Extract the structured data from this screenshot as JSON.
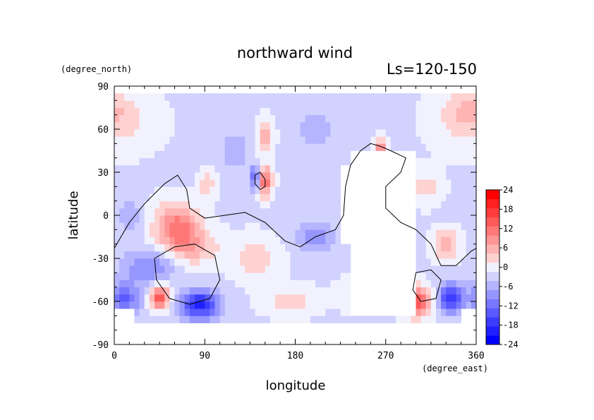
{
  "chart_data": {
    "type": "heatmap",
    "title": "northward wind",
    "subtitle": "Ls=120-150",
    "xlabel": "longitude",
    "ylabel": "latitude",
    "x_unit": "(degree_east)",
    "y_unit": "(degree_north)",
    "xlim": [
      0,
      360
    ],
    "ylim": [
      -90,
      90
    ],
    "x_ticks": [
      "0",
      "90",
      "180",
      "270",
      "360"
    ],
    "y_ticks": [
      "90",
      "60",
      "30",
      "0",
      "-30",
      "-60",
      "-90"
    ],
    "x_tick_values": [
      0,
      90,
      180,
      270,
      360
    ],
    "y_tick_values": [
      90,
      60,
      30,
      0,
      -30,
      -60,
      -90
    ],
    "colorbar": {
      "ticks": [
        "24",
        "18",
        "12",
        "6",
        "0",
        "-6",
        "-12",
        "-18",
        "-24"
      ],
      "levels": [
        -24,
        -21,
        -18,
        -15,
        -12,
        -9,
        -6,
        -3,
        0,
        3,
        6,
        9,
        12,
        15,
        18,
        21,
        24
      ],
      "colors": [
        "#0000ff",
        "#2020ff",
        "#3c3cff",
        "#5a5aff",
        "#7878ff",
        "#9696ff",
        "#b4b4ff",
        "#d2d2ff",
        "#f2f2ff",
        "#ffd2d2",
        "#ffb4b4",
        "#ff9696",
        "#ff7878",
        "#ff5a5a",
        "#ff3c3c",
        "#ff2020",
        "#ff0000"
      ],
      "range": [
        -24,
        24
      ]
    },
    "data_lat_range": [
      -75,
      85
    ],
    "background": -2,
    "field_features": [
      {
        "lon": 62,
        "lat": -8,
        "value": 14,
        "lon_width": 22,
        "lat_width": 16
      },
      {
        "lon": 80,
        "lat": -22,
        "value": 7,
        "lon_width": 25,
        "lat_width": 12
      },
      {
        "lon": 150,
        "lat": 24,
        "value": 16,
        "lon_width": 7,
        "lat_width": 10
      },
      {
        "lon": 140,
        "lat": 26,
        "value": -14,
        "lon_width": 5,
        "lat_width": 8
      },
      {
        "lon": 150,
        "lat": 55,
        "value": 8,
        "lon_width": 8,
        "lat_width": 12
      },
      {
        "lon": 92,
        "lat": 22,
        "value": 6,
        "lon_width": 8,
        "lat_width": 10
      },
      {
        "lon": 45,
        "lat": -57,
        "value": 18,
        "lon_width": 10,
        "lat_width": 8
      },
      {
        "lon": 85,
        "lat": -62,
        "value": -20,
        "lon_width": 18,
        "lat_width": 10
      },
      {
        "lon": 10,
        "lat": -58,
        "value": -12,
        "lon_width": 16,
        "lat_width": 12
      },
      {
        "lon": 35,
        "lat": -35,
        "value": -9,
        "lon_width": 25,
        "lat_width": 12
      },
      {
        "lon": 300,
        "lat": -60,
        "value": 20,
        "lon_width": 14,
        "lat_width": 10
      },
      {
        "lon": 335,
        "lat": -58,
        "value": -18,
        "lon_width": 12,
        "lat_width": 10
      },
      {
        "lon": 265,
        "lat": 38,
        "value": 22,
        "lon_width": 6,
        "lat_width": 12
      },
      {
        "lon": 280,
        "lat": 35,
        "value": -10,
        "lon_width": 6,
        "lat_width": 10
      },
      {
        "lon": 235,
        "lat": 25,
        "value": -12,
        "lon_width": 7,
        "lat_width": 10
      },
      {
        "lon": 330,
        "lat": -20,
        "value": 10,
        "lon_width": 12,
        "lat_width": 10
      },
      {
        "lon": 0,
        "lat": 65,
        "value": 5,
        "lon_width": 40,
        "lat_width": 20
      },
      {
        "lon": 350,
        "lat": 75,
        "value": 4,
        "lon_width": 25,
        "lat_width": 12
      },
      {
        "lon": 200,
        "lat": -15,
        "value": -7,
        "lon_width": 20,
        "lat_width": 12
      },
      {
        "lon": 140,
        "lat": -30,
        "value": 5,
        "lon_width": 25,
        "lat_width": 15
      },
      {
        "lon": 250,
        "lat": -55,
        "value": 6,
        "lon_width": 25,
        "lat_width": 10
      },
      {
        "lon": 15,
        "lat": 0,
        "value": -5,
        "lon_width": 12,
        "lat_width": 12
      },
      {
        "lon": 120,
        "lat": 45,
        "value": -5,
        "lon_width": 15,
        "lat_width": 12
      },
      {
        "lon": 310,
        "lat": 20,
        "value": 5,
        "lon_width": 15,
        "lat_width": 12
      },
      {
        "lon": 175,
        "lat": -60,
        "value": 5,
        "lon_width": 25,
        "lat_width": 10
      },
      {
        "lon": 200,
        "lat": 60,
        "value": -4,
        "lon_width": 20,
        "lat_width": 15
      }
    ],
    "missing_regions": [
      {
        "lon": [
          237,
          298
        ],
        "lat": [
          -72,
          45
        ]
      },
      {
        "lon": [
          225,
          240
        ],
        "lat": [
          -20,
          35
        ]
      },
      {
        "lon": [
          0,
          360
        ],
        "lat": [
          -90,
          -77
        ]
      },
      {
        "lon": [
          0,
          20
        ],
        "lat": [
          -90,
          -67
        ]
      },
      {
        "lon": [
          345,
          360
        ],
        "lat": [
          -90,
          -67
        ]
      }
    ],
    "contours": [
      [
        [
          0,
          -23
        ],
        [
          15,
          -5
        ],
        [
          30,
          8
        ],
        [
          50,
          22
        ],
        [
          63,
          28
        ],
        [
          72,
          18
        ],
        [
          75,
          5
        ],
        [
          90,
          -2
        ],
        [
          110,
          0
        ],
        [
          130,
          2
        ],
        [
          150,
          -5
        ],
        [
          170,
          -18
        ],
        [
          185,
          -22
        ],
        [
          200,
          -15
        ],
        [
          220,
          -10
        ],
        [
          228,
          0
        ],
        [
          230,
          20
        ],
        [
          235,
          35
        ],
        [
          245,
          45
        ],
        [
          255,
          50
        ],
        [
          265,
          48
        ],
        [
          275,
          45
        ],
        [
          290,
          40
        ],
        [
          285,
          30
        ],
        [
          270,
          20
        ],
        [
          270,
          5
        ],
        [
          285,
          -5
        ],
        [
          300,
          -10
        ],
        [
          315,
          -20
        ],
        [
          325,
          -35
        ],
        [
          340,
          -35
        ],
        [
          355,
          -25
        ],
        [
          360,
          -23
        ]
      ],
      [
        [
          40,
          -30
        ],
        [
          60,
          -22
        ],
        [
          80,
          -20
        ],
        [
          100,
          -28
        ],
        [
          105,
          -45
        ],
        [
          95,
          -58
        ],
        [
          75,
          -62
        ],
        [
          55,
          -58
        ],
        [
          42,
          -45
        ],
        [
          40,
          -30
        ]
      ],
      [
        [
          140,
          28
        ],
        [
          145,
          30
        ],
        [
          150,
          25
        ],
        [
          150,
          20
        ],
        [
          145,
          18
        ],
        [
          140,
          22
        ],
        [
          140,
          28
        ]
      ],
      [
        [
          300,
          -40
        ],
        [
          315,
          -38
        ],
        [
          325,
          -45
        ],
        [
          320,
          -58
        ],
        [
          305,
          -60
        ],
        [
          297,
          -52
        ],
        [
          300,
          -40
        ]
      ]
    ]
  }
}
